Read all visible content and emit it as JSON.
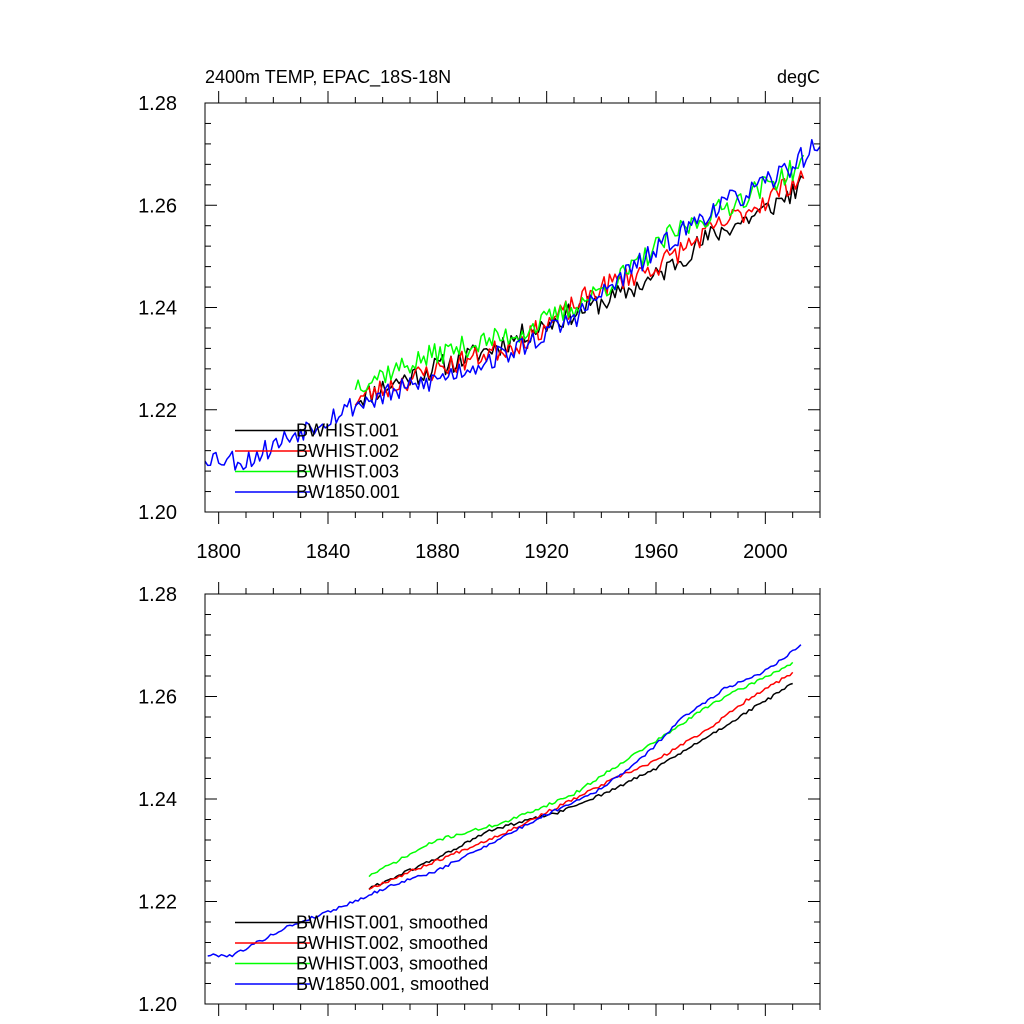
{
  "chart_data": [
    {
      "type": "line",
      "title": "2400m TEMP, EPAC_18S-18N",
      "units": "degC",
      "xlim": [
        1795,
        2020
      ],
      "ylim": [
        1.2,
        1.28
      ],
      "xticks": [
        1800,
        1840,
        1880,
        1920,
        1960,
        2000
      ],
      "yticks": [
        "1.20",
        "1.22",
        "1.24",
        "1.26",
        "1.28"
      ],
      "show_x_tick_labels": true,
      "legend": "bottom-left",
      "series": [
        {
          "name": "BWHIST.001",
          "color": "#000000",
          "x_start": 1850,
          "x_end": 2014,
          "y_start": 1.222,
          "y_end": 1.264,
          "noise": 0.0022,
          "seed": 11,
          "anchors": [
            [
              1850,
              1.222
            ],
            [
              1870,
              1.2265
            ],
            [
              1900,
              1.232
            ],
            [
              1930,
              1.239
            ],
            [
              1945,
              1.242
            ],
            [
              1960,
              1.246
            ],
            [
              1980,
              1.254
            ],
            [
              2000,
              1.259
            ],
            [
              2014,
              1.264
            ]
          ]
        },
        {
          "name": "BWHIST.002",
          "color": "#ff0000",
          "x_start": 1850,
          "x_end": 2014,
          "y_start": 1.222,
          "y_end": 1.266,
          "noise": 0.0022,
          "seed": 23,
          "anchors": [
            [
              1850,
              1.222
            ],
            [
              1880,
              1.228
            ],
            [
              1910,
              1.233
            ],
            [
              1940,
              1.244
            ],
            [
              1960,
              1.248
            ],
            [
              1980,
              1.255
            ],
            [
              2000,
              1.261
            ],
            [
              2014,
              1.266
            ]
          ]
        },
        {
          "name": "BWHIST.003",
          "color": "#00ff00",
          "x_start": 1850,
          "x_end": 2014,
          "y_start": 1.225,
          "y_end": 1.268,
          "noise": 0.0022,
          "seed": 37,
          "anchors": [
            [
              1850,
              1.225
            ],
            [
              1880,
              1.231
            ],
            [
              1910,
              1.235
            ],
            [
              1930,
              1.24
            ],
            [
              1950,
              1.247
            ],
            [
              1965,
              1.254
            ],
            [
              1990,
              1.261
            ],
            [
              2014,
              1.268
            ]
          ]
        },
        {
          "name": "BW1850.001",
          "color": "#0000ff",
          "x_start": 1795,
          "x_end": 2020,
          "y_start": 1.211,
          "y_end": 1.272,
          "noise": 0.0022,
          "seed": 53,
          "anchors": [
            [
              1795,
              1.211
            ],
            [
              1810,
              1.21
            ],
            [
              1830,
              1.216
            ],
            [
              1850,
              1.221
            ],
            [
              1880,
              1.226
            ],
            [
              1910,
              1.232
            ],
            [
              1930,
              1.238
            ],
            [
              1950,
              1.247
            ],
            [
              1965,
              1.253
            ],
            [
              1980,
              1.259
            ],
            [
              2000,
              1.264
            ],
            [
              2020,
              1.272
            ]
          ]
        }
      ]
    },
    {
      "type": "line",
      "title": "",
      "units": "",
      "xlim": [
        1795,
        2020
      ],
      "ylim": [
        1.2,
        1.28
      ],
      "xticks": [
        1800,
        1840,
        1880,
        1920,
        1960,
        2000
      ],
      "yticks": [
        "1.20",
        "1.22",
        "1.24",
        "1.26",
        "1.28"
      ],
      "show_x_tick_labels": false,
      "legend": "bottom-left",
      "series": [
        {
          "name": "BWHIST.001, smoothed",
          "color": "#000000",
          "x_start": 1855,
          "x_end": 2010,
          "noise": 0.0003,
          "seed": 61,
          "anchors": [
            [
              1855,
              1.2225
            ],
            [
              1880,
              1.2285
            ],
            [
              1900,
              1.234
            ],
            [
              1925,
              1.2375
            ],
            [
              1945,
              1.242
            ],
            [
              1960,
              1.246
            ],
            [
              1980,
              1.2525
            ],
            [
              1995,
              1.2575
            ],
            [
              2010,
              1.2625
            ]
          ]
        },
        {
          "name": "BWHIST.002, smoothed",
          "color": "#ff0000",
          "x_start": 1855,
          "x_end": 2010,
          "noise": 0.0003,
          "seed": 67,
          "anchors": [
            [
              1855,
              1.2225
            ],
            [
              1880,
              1.228
            ],
            [
              1905,
              1.2335
            ],
            [
              1930,
              1.24
            ],
            [
              1945,
              1.244
            ],
            [
              1960,
              1.2475
            ],
            [
              1980,
              1.254
            ],
            [
              1995,
              1.26
            ],
            [
              2010,
              1.2645
            ]
          ]
        },
        {
          "name": "BWHIST.003, smoothed",
          "color": "#00ff00",
          "x_start": 1855,
          "x_end": 2010,
          "noise": 0.0003,
          "seed": 71,
          "anchors": [
            [
              1855,
              1.225
            ],
            [
              1880,
              1.232
            ],
            [
              1905,
              1.2355
            ],
            [
              1930,
              1.241
            ],
            [
              1950,
              1.248
            ],
            [
              1965,
              1.253
            ],
            [
              1980,
              1.2585
            ],
            [
              1995,
              1.2625
            ],
            [
              2010,
              1.2665
            ]
          ]
        },
        {
          "name": "BW1850.001, smoothed",
          "color": "#0000ff",
          "x_start": 1796,
          "x_end": 2013,
          "noise": 0.0003,
          "seed": 79,
          "anchors": [
            [
              1796,
              1.2095
            ],
            [
              1805,
              1.2095
            ],
            [
              1825,
              1.215
            ],
            [
              1845,
              1.219
            ],
            [
              1865,
              1.2235
            ],
            [
              1880,
              1.226
            ],
            [
              1900,
              1.2315
            ],
            [
              1920,
              1.237
            ],
            [
              1940,
              1.242
            ],
            [
              1955,
              1.248
            ],
            [
              1970,
              1.256
            ],
            [
              1985,
              1.2615
            ],
            [
              2000,
              1.265
            ],
            [
              2013,
              1.27
            ]
          ]
        }
      ]
    }
  ]
}
